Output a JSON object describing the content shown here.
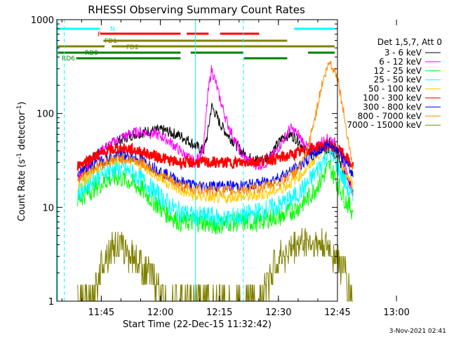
{
  "chart_data": {
    "type": "line",
    "title": "RHESSI Observing Summary Count Rates",
    "xlabel": "Start Time (22-Dec-15 11:32:42)",
    "ylabel": "Count Rate (s⁻¹ detector⁻¹)",
    "ylabel_main": "Count Rate (s",
    "ylabel_sup1": "-1",
    "ylabel_mid": " detector",
    "ylabel_sup2": "-1",
    "ylabel_end": ")",
    "yscale": "log",
    "ylim": [
      1,
      1000
    ],
    "xlim_minutes": [
      11.5,
      82.5
    ],
    "x_unit": "minutes after 11:32:42",
    "y_ticks": [
      {
        "value": 1,
        "label": "1"
      },
      {
        "value": 10,
        "label": "10"
      },
      {
        "value": 100,
        "label": "100"
      },
      {
        "value": 1000,
        "label": "1000"
      }
    ],
    "x_ticks": [
      {
        "minute": 18,
        "label": "11:45"
      },
      {
        "minute": 33,
        "label": "12:00"
      },
      {
        "minute": 48,
        "label": "12:15"
      },
      {
        "minute": 63,
        "label": "12:30"
      },
      {
        "minute": 78,
        "label": "12:45"
      },
      {
        "minute": 93,
        "label": "13:00"
      }
    ],
    "legend_header": "Det 1,5,7, Att 0",
    "legend_position": "right",
    "timestamp": "3-Nov-2021 02:41",
    "series": [
      {
        "name": "3 - 6 keV",
        "color": "#000000",
        "t": [
          12,
          14,
          16,
          18,
          20,
          22,
          24,
          26,
          28,
          30,
          32,
          34,
          36,
          38,
          40,
          42,
          44,
          45,
          46,
          47,
          48,
          50,
          52,
          54,
          56,
          58,
          60,
          62,
          64,
          66,
          68,
          70,
          72,
          74,
          76,
          78,
          80,
          82
        ],
        "values": [
          22,
          28,
          34,
          40,
          45,
          50,
          55,
          60,
          62,
          65,
          66,
          66,
          62,
          58,
          52,
          45,
          40,
          60,
          120,
          100,
          80,
          60,
          48,
          38,
          33,
          32,
          33,
          42,
          55,
          60,
          52,
          40,
          38,
          40,
          42,
          35,
          22,
          15
        ]
      },
      {
        "name": "6 - 12 keV",
        "color": "#ff00ff",
        "t": [
          12,
          14,
          16,
          18,
          20,
          22,
          24,
          26,
          28,
          30,
          32,
          34,
          36,
          38,
          40,
          42,
          44,
          45,
          46,
          47,
          48,
          50,
          52,
          54,
          56,
          58,
          60,
          62,
          64,
          66,
          68,
          70,
          72,
          74,
          76,
          78,
          80,
          82
        ],
        "values": [
          20,
          26,
          33,
          40,
          46,
          52,
          58,
          62,
          64,
          62,
          60,
          55,
          48,
          40,
          34,
          30,
          45,
          150,
          300,
          220,
          150,
          80,
          50,
          35,
          30,
          28,
          30,
          38,
          50,
          70,
          60,
          45,
          42,
          50,
          55,
          45,
          25,
          14
        ]
      },
      {
        "name": "12 - 25 keV",
        "color": "#00ff00",
        "t": [
          12,
          14,
          16,
          18,
          20,
          22,
          24,
          26,
          28,
          30,
          32,
          34,
          36,
          38,
          40,
          42,
          44,
          46,
          48,
          50,
          52,
          54,
          56,
          58,
          60,
          62,
          64,
          66,
          68,
          70,
          72,
          74,
          76,
          78,
          80,
          82
        ],
        "values": [
          12,
          14,
          16,
          18,
          20,
          21,
          20,
          18,
          16,
          13,
          11,
          9,
          8,
          7,
          7,
          7,
          7,
          6.5,
          6.5,
          7,
          7,
          7,
          7,
          7,
          7.5,
          8,
          8,
          9,
          10,
          12,
          15,
          20,
          28,
          18,
          12,
          9
        ]
      },
      {
        "name": "25 - 50 keV",
        "color": "#00ffff",
        "t": [
          12,
          14,
          16,
          18,
          20,
          22,
          24,
          26,
          28,
          30,
          32,
          34,
          36,
          38,
          40,
          42,
          44,
          46,
          48,
          50,
          52,
          54,
          56,
          58,
          60,
          62,
          64,
          66,
          68,
          70,
          72,
          74,
          76,
          78,
          80,
          82
        ],
        "values": [
          14,
          17,
          20,
          23,
          25,
          26,
          25,
          23,
          20,
          17,
          14,
          12,
          10,
          9,
          8.5,
          8,
          8,
          8,
          7.5,
          7.5,
          8,
          8,
          8.5,
          9,
          9.5,
          10,
          11,
          12,
          14,
          17,
          22,
          30,
          40,
          28,
          18,
          12
        ]
      },
      {
        "name": "50 - 100 keV",
        "color": "#ffcc00",
        "t": [
          12,
          14,
          16,
          18,
          20,
          22,
          24,
          26,
          28,
          30,
          32,
          34,
          36,
          38,
          40,
          42,
          44,
          46,
          48,
          50,
          52,
          54,
          56,
          58,
          60,
          62,
          64,
          66,
          68,
          70,
          72,
          74,
          76,
          78,
          80,
          82
        ],
        "values": [
          17,
          20,
          24,
          28,
          31,
          33,
          33,
          31,
          28,
          25,
          22,
          19,
          17,
          15,
          14,
          13,
          13,
          12.5,
          12.5,
          12.5,
          13,
          13,
          13,
          13.5,
          14,
          15,
          16,
          18,
          21,
          25,
          32,
          40,
          48,
          36,
          24,
          17
        ]
      },
      {
        "name": "100 - 300 keV",
        "color": "#ff0000",
        "t": [
          12,
          14,
          16,
          18,
          20,
          22,
          24,
          26,
          28,
          30,
          32,
          34,
          36,
          38,
          40,
          42,
          44,
          46,
          48,
          50,
          52,
          54,
          56,
          58,
          60,
          62,
          64,
          66,
          68,
          70,
          72,
          74,
          76,
          78,
          80,
          82
        ],
        "values": [
          28,
          31,
          34,
          37,
          40,
          42,
          42,
          41,
          39,
          37,
          35,
          33,
          31,
          30,
          30,
          30,
          30,
          30,
          30,
          30,
          30,
          30,
          31,
          31,
          32,
          33,
          34,
          36,
          38,
          40,
          43,
          45,
          46,
          42,
          35,
          27
        ]
      },
      {
        "name": "300 - 800 keV",
        "color": "#0000ff",
        "t": [
          12,
          14,
          16,
          18,
          20,
          22,
          24,
          26,
          28,
          30,
          32,
          34,
          36,
          38,
          40,
          42,
          44,
          46,
          48,
          50,
          52,
          54,
          56,
          58,
          60,
          62,
          64,
          66,
          68,
          70,
          72,
          74,
          76,
          78,
          80,
          82
        ],
        "values": [
          22,
          25,
          28,
          31,
          33,
          35,
          35,
          34,
          32,
          29,
          26,
          23,
          21,
          19,
          18,
          17,
          17,
          17,
          17,
          17,
          17,
          17,
          17.5,
          18,
          19,
          20,
          22,
          24,
          27,
          31,
          36,
          42,
          48,
          40,
          30,
          22
        ]
      },
      {
        "name": "800 - 7000 keV",
        "color": "#ff8800",
        "t": [
          12,
          14,
          16,
          18,
          20,
          22,
          24,
          26,
          28,
          30,
          32,
          34,
          36,
          38,
          40,
          42,
          44,
          46,
          48,
          50,
          52,
          54,
          56,
          58,
          60,
          62,
          64,
          66,
          68,
          70,
          72,
          74,
          76,
          78,
          80,
          82
        ],
        "values": [
          20,
          23,
          26,
          29,
          31,
          33,
          33,
          32,
          30,
          27,
          24,
          21,
          19,
          17,
          16,
          15.5,
          15.5,
          15,
          15,
          15,
          15,
          15.5,
          15.5,
          16,
          17,
          18,
          19,
          22,
          25,
          35,
          80,
          200,
          360,
          250,
          80,
          25
        ]
      },
      {
        "name": "7000 - 15000 keV",
        "color": "#808000",
        "t": [
          12,
          14,
          16,
          18,
          20,
          22,
          24,
          26,
          28,
          30,
          32,
          34,
          36,
          38,
          40,
          42,
          44,
          46,
          48,
          50,
          52,
          54,
          56,
          58,
          60,
          62,
          64,
          66,
          68,
          70,
          72,
          74,
          76,
          78,
          80,
          82
        ],
        "values": [
          1,
          1,
          1,
          2.5,
          3.5,
          4,
          3.5,
          3,
          2.5,
          2,
          1.5,
          1,
          1,
          1,
          1,
          1,
          1,
          1,
          1,
          1,
          1,
          1,
          1,
          1,
          1.5,
          2.5,
          3,
          3.5,
          4,
          4.5,
          4,
          4,
          3.5,
          3,
          2,
          1
        ]
      }
    ],
    "vertical_markers_minutes": [
      14.8,
      84.5,
      97.3
    ],
    "flag_bars": [
      {
        "label": "N",
        "color": "#00ffff",
        "segments": [
          [
            0,
            15.3
          ],
          [
            84.6,
            99
          ]
        ]
      },
      {
        "label": "F",
        "color": "#ff0000",
        "segments": [
          [
            15.5,
            44.1
          ],
          [
            46.3,
            54.1
          ],
          [
            58.2,
            72.1
          ]
        ]
      },
      {
        "label": "FD1",
        "color": "#808000",
        "segments": [
          [
            16.6,
            82.1
          ]
        ]
      },
      {
        "label": "FD2",
        "color": "#808000",
        "segments": [
          [
            0,
            17
          ],
          [
            19.6,
            99
          ]
        ]
      },
      {
        "label": "RD0",
        "color": "#008000",
        "segments": [
          [
            0,
            44.1
          ],
          [
            47.7,
            66.3
          ],
          [
            89.5,
            99
          ]
        ]
      },
      {
        "label": "RD6",
        "color": "#008000",
        "segments": [
          [
            6.9,
            44.1
          ],
          [
            66.7,
            82.1
          ]
        ]
      }
    ]
  }
}
